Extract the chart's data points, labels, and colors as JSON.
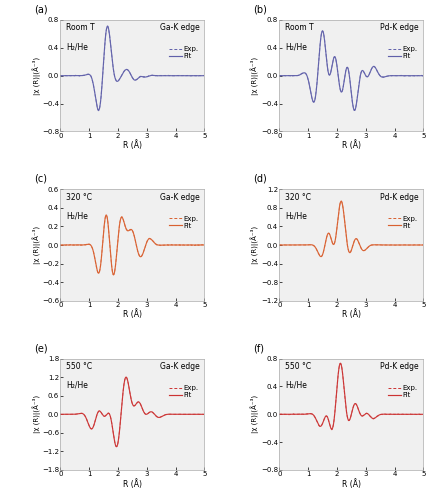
{
  "panels": [
    {
      "label": "a",
      "temp": "Room T",
      "gas": "H₂/He",
      "edge": "Ga-K edge",
      "color": "#6060aa",
      "ylim": [
        -0.8,
        0.8
      ],
      "yticks": [
        -0.8,
        -0.4,
        0.0,
        0.4,
        0.8
      ]
    },
    {
      "label": "b",
      "temp": "Room T",
      "gas": "H₂/He",
      "edge": "Pd-K edge",
      "color": "#6060aa",
      "ylim": [
        -0.8,
        0.8
      ],
      "yticks": [
        -0.8,
        -0.4,
        0.0,
        0.4,
        0.8
      ]
    },
    {
      "label": "c",
      "temp": "320 °C",
      "gas": "H₂/He",
      "edge": "Ga-K edge",
      "color": "#d96030",
      "ylim": [
        -0.6,
        0.6
      ],
      "yticks": [
        -0.6,
        -0.4,
        -0.2,
        0.0,
        0.2,
        0.4,
        0.6
      ]
    },
    {
      "label": "d",
      "temp": "320 °C",
      "gas": "H₂/He",
      "edge": "Pd-K edge",
      "color": "#d96030",
      "ylim": [
        -1.2,
        1.2
      ],
      "yticks": [
        -1.2,
        -0.8,
        -0.4,
        0.0,
        0.4,
        0.8,
        1.2
      ]
    },
    {
      "label": "e",
      "temp": "550 °C",
      "gas": "H₂/He",
      "edge": "Ga-K edge",
      "color": "#cc3333",
      "ylim": [
        -1.8,
        1.8
      ],
      "yticks": [
        -1.8,
        -1.2,
        -0.6,
        0.0,
        0.6,
        1.2,
        1.8
      ]
    },
    {
      "label": "f",
      "temp": "550 °C",
      "gas": "H₂/He",
      "edge": "Pd-K edge",
      "color": "#cc3333",
      "ylim": [
        -0.8,
        0.8
      ],
      "yticks": [
        -0.8,
        -0.4,
        0.0,
        0.4,
        0.8
      ]
    }
  ],
  "xlabel": "R (Å)",
  "ylabel": "|χ (R)|(Å⁻³)",
  "xlim": [
    0,
    5
  ],
  "xticks": [
    0,
    1,
    2,
    3,
    4,
    5
  ],
  "bg_color": "#f0f0f0"
}
